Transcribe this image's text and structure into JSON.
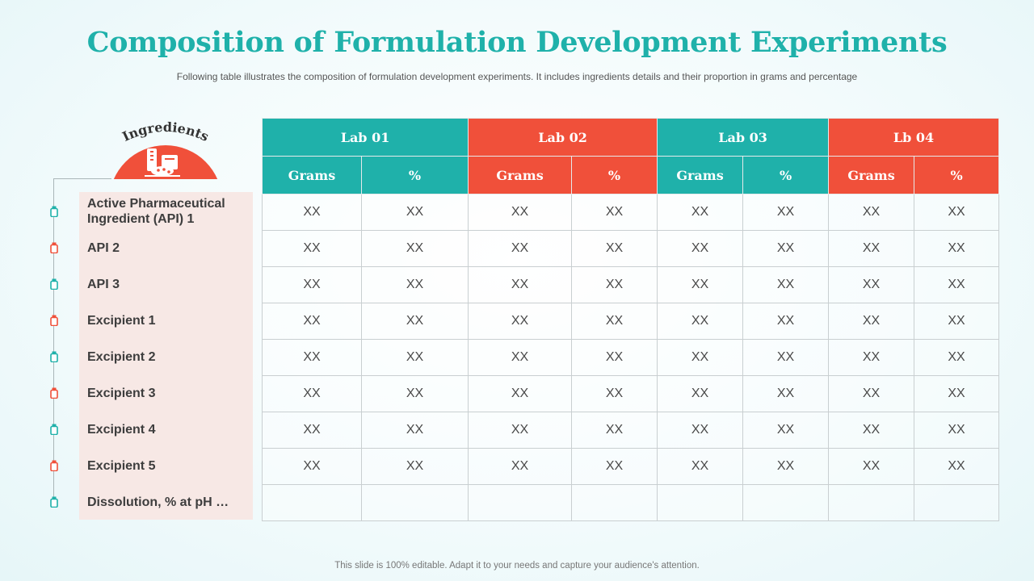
{
  "title": "Composition of Formulation Development Experiments",
  "subtitle": "Following table illustrates the composition of formulation development  experiments. It includes ingredients details and their proportion in grams and percentage",
  "badge": {
    "label": "Ingredients",
    "icon": "food-ingredients-icon"
  },
  "colors": {
    "teal": "#1fb1aa",
    "red": "#f0503a",
    "panel": "#f7e8e5"
  },
  "ingredients": [
    {
      "line1": "Active Pharmaceutical",
      "line2": "Ingredient (API) 1",
      "icon_color": "teal"
    },
    {
      "line1": "API 2",
      "line2": "",
      "icon_color": "red"
    },
    {
      "line1": "API 3",
      "line2": "",
      "icon_color": "teal"
    },
    {
      "line1": "Excipient 1",
      "line2": "",
      "icon_color": "red"
    },
    {
      "line1": "Excipient 2",
      "line2": "",
      "icon_color": "teal"
    },
    {
      "line1": "Excipient 3",
      "line2": "",
      "icon_color": "red"
    },
    {
      "line1": "Excipient 4",
      "line2": "",
      "icon_color": "teal"
    },
    {
      "line1": "Excipient 5",
      "line2": "",
      "icon_color": "red"
    },
    {
      "line1": "Dissolution, % at pH …",
      "line2": "",
      "icon_color": "teal"
    }
  ],
  "table": {
    "labs": [
      "Lab 01",
      "Lab 02",
      "Lab 03",
      "Lb 04"
    ],
    "subheaders": [
      "Grams",
      "%",
      "Grams",
      "%",
      "Grams",
      "%",
      "Grams",
      "%"
    ],
    "rows": [
      [
        "XX",
        "XX",
        "XX",
        "XX",
        "XX",
        "XX",
        "XX",
        "XX"
      ],
      [
        "XX",
        "XX",
        "XX",
        "XX",
        "XX",
        "XX",
        "XX",
        "XX"
      ],
      [
        "XX",
        "XX",
        "XX",
        "XX",
        "XX",
        "XX",
        "XX",
        "XX"
      ],
      [
        "XX",
        "XX",
        "XX",
        "XX",
        "XX",
        "XX",
        "XX",
        "XX"
      ],
      [
        "XX",
        "XX",
        "XX",
        "XX",
        "XX",
        "XX",
        "XX",
        "XX"
      ],
      [
        "XX",
        "XX",
        "XX",
        "XX",
        "XX",
        "XX",
        "XX",
        "XX"
      ],
      [
        "XX",
        "XX",
        "XX",
        "XX",
        "XX",
        "XX",
        "XX",
        "XX"
      ],
      [
        "XX",
        "XX",
        "XX",
        "XX",
        "XX",
        "XX",
        "XX",
        "XX"
      ],
      [
        "",
        "",
        "",
        "",
        "",
        "",
        "",
        ""
      ]
    ]
  },
  "footer": "This slide is 100% editable. Adapt it to your needs and capture your audience's attention."
}
